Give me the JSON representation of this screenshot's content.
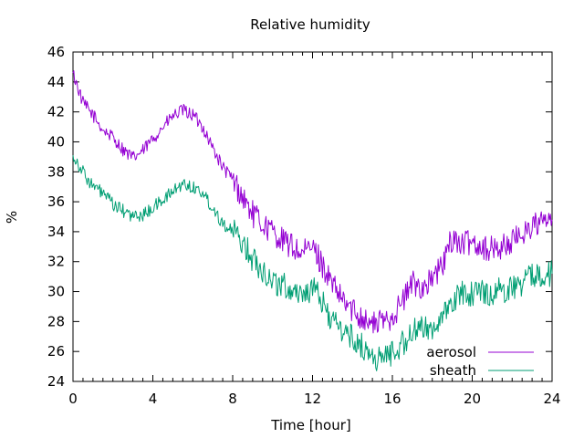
{
  "chart_data": {
    "type": "line",
    "title": "Relative humidity",
    "xlabel": "Time [hour]",
    "ylabel": "%",
    "xlim": [
      0,
      24
    ],
    "ylim": [
      24,
      46
    ],
    "xticks": [
      0,
      4,
      8,
      12,
      16,
      20,
      24
    ],
    "yticks": [
      24,
      26,
      28,
      30,
      32,
      34,
      36,
      38,
      40,
      42,
      44,
      46
    ],
    "x_minor_step": 0.5,
    "grid": false,
    "legend_position": "bottom-right",
    "series": [
      {
        "name": "aerosol",
        "color": "#9400d3",
        "points": [
          [
            0,
            44.6
          ],
          [
            0.5,
            42.6
          ],
          [
            1,
            41.8
          ],
          [
            1.5,
            40.8
          ],
          [
            2,
            40.3
          ],
          [
            2.5,
            39.5
          ],
          [
            3,
            38.9
          ],
          [
            3.5,
            39.4
          ],
          [
            4,
            40.2
          ],
          [
            4.5,
            41.0
          ],
          [
            5,
            41.7
          ],
          [
            5.5,
            42.1
          ],
          [
            6,
            41.8
          ],
          [
            6.5,
            41.0
          ],
          [
            7,
            39.6
          ],
          [
            7.5,
            38.3
          ],
          [
            8,
            37.5
          ],
          [
            8.5,
            36.3
          ],
          [
            9,
            35.2
          ],
          [
            9.5,
            34.5
          ],
          [
            10,
            34.0
          ],
          [
            10.5,
            33.4
          ],
          [
            11,
            33.0
          ],
          [
            11.5,
            32.5
          ],
          [
            12,
            33.0
          ],
          [
            12.5,
            31.8
          ],
          [
            13,
            30.4
          ],
          [
            13.5,
            29.4
          ],
          [
            14,
            28.8
          ],
          [
            14.5,
            28.3
          ],
          [
            15,
            27.8
          ],
          [
            15.5,
            28.0
          ],
          [
            16,
            28.4
          ],
          [
            16.5,
            29.3
          ],
          [
            17,
            30.6
          ],
          [
            17.5,
            30.3
          ],
          [
            18,
            30.8
          ],
          [
            18.5,
            31.7
          ],
          [
            19,
            33.6
          ],
          [
            19.5,
            33.1
          ],
          [
            20,
            33.4
          ],
          [
            20.5,
            33.0
          ],
          [
            21,
            32.8
          ],
          [
            21.5,
            33.0
          ],
          [
            22,
            33.3
          ],
          [
            22.5,
            33.9
          ],
          [
            23,
            34.4
          ],
          [
            23.5,
            34.6
          ],
          [
            24,
            34.8
          ]
        ]
      },
      {
        "name": "sheath",
        "color": "#009e73",
        "points": [
          [
            0,
            39.1
          ],
          [
            0.5,
            38.0
          ],
          [
            1,
            37.0
          ],
          [
            1.5,
            36.6
          ],
          [
            2,
            35.8
          ],
          [
            2.5,
            35.4
          ],
          [
            3,
            35.0
          ],
          [
            3.5,
            35.1
          ],
          [
            4,
            35.6
          ],
          [
            4.5,
            36.1
          ],
          [
            5,
            36.7
          ],
          [
            5.5,
            37.2
          ],
          [
            6,
            37.0
          ],
          [
            6.5,
            36.6
          ],
          [
            7,
            35.6
          ],
          [
            7.5,
            34.6
          ],
          [
            8,
            34.0
          ],
          [
            8.5,
            33.3
          ],
          [
            9,
            32.2
          ],
          [
            9.5,
            31.5
          ],
          [
            10,
            30.7
          ],
          [
            10.5,
            30.4
          ],
          [
            11,
            30.1
          ],
          [
            11.5,
            29.9
          ],
          [
            12,
            30.2
          ],
          [
            12.5,
            29.3
          ],
          [
            13,
            28.0
          ],
          [
            13.5,
            27.4
          ],
          [
            14,
            26.9
          ],
          [
            14.5,
            26.3
          ],
          [
            15,
            25.6
          ],
          [
            15.5,
            25.5
          ],
          [
            16,
            26.0
          ],
          [
            16.5,
            26.5
          ],
          [
            17,
            27.3
          ],
          [
            17.5,
            27.5
          ],
          [
            18,
            27.7
          ],
          [
            18.5,
            28.1
          ],
          [
            19,
            29.3
          ],
          [
            19.5,
            29.9
          ],
          [
            20,
            29.9
          ],
          [
            20.5,
            30.0
          ],
          [
            21,
            29.9
          ],
          [
            21.5,
            30.1
          ],
          [
            22,
            30.3
          ],
          [
            22.5,
            30.6
          ],
          [
            23,
            31.0
          ],
          [
            23.5,
            31.3
          ],
          [
            24,
            31.2
          ]
        ]
      }
    ]
  }
}
